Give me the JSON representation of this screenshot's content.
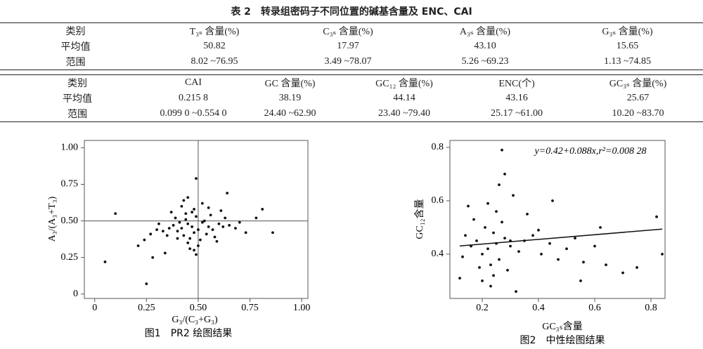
{
  "table": {
    "title": "表 2　转录组密码子不同位置的碱基含量及 ENC、CAI",
    "header1": [
      "类别",
      "T₃ₛ 含量(%)",
      "C₃ₛ 含量(%)",
      "A₃ₛ 含量(%)",
      "G₃ₛ 含量(%)"
    ],
    "rows1": [
      [
        "平均值",
        "50.82",
        "17.97",
        "43.10",
        "15.65"
      ],
      [
        "范围",
        "8.02 ~76.95",
        "3.49 ~78.07",
        "5.26 ~69.23",
        "1.13 ~74.85"
      ]
    ],
    "header2": [
      "类别",
      "CAI",
      "GC 含量(%)",
      "GC₁₂ 含量(%)",
      "ENC(个)",
      "GC₃ₛ 含量(%)"
    ],
    "rows2": [
      [
        "平均值",
        "0.215 8",
        "38.19",
        "44.14",
        "43.16",
        "25.67"
      ],
      [
        "范围",
        "0.099 0 ~0.554 0",
        "24.40 ~62.90",
        "23.40 ~79.40",
        "25.17 ~61.00",
        "10.20 ~83.70"
      ]
    ]
  },
  "chart_data": [
    {
      "type": "scatter",
      "caption": "图1　PR2 绘图结果",
      "xlabel": "G₃/(C₃+G₃)",
      "ylabel": "A₃/(A₃+T₃)",
      "xlim": [
        -0.05,
        1.03
      ],
      "ylim": [
        -0.03,
        1.05
      ],
      "xticks": [
        0,
        0.25,
        {
          "value": 0.5,
          "label": "0.50"
        },
        0.75,
        {
          "value": 1,
          "label": "1.00"
        }
      ],
      "yticks": [
        0,
        0.25,
        {
          "value": 0.5,
          "label": "0.50"
        },
        0.75,
        {
          "value": 1,
          "label": "1.00"
        }
      ],
      "vline": 0.5,
      "hline": 0.5,
      "color": "#111111",
      "x": [
        0.47,
        0.45,
        0.5,
        0.42,
        0.52,
        0.48,
        0.44,
        0.55,
        0.4,
        0.46,
        0.53,
        0.38,
        0.57,
        0.49,
        0.43,
        0.51,
        0.36,
        0.6,
        0.47,
        0.41,
        0.54,
        0.45,
        0.33,
        0.62,
        0.48,
        0.39,
        0.58,
        0.44,
        0.3,
        0.65,
        0.5,
        0.35,
        0.56,
        0.42,
        0.27,
        0.68,
        0.46,
        0.31,
        0.61,
        0.52,
        0.24,
        0.7,
        0.48,
        0.37,
        0.59,
        0.43,
        0.21,
        0.73,
        0.55,
        0.34,
        0.63,
        0.45,
        0.49,
        0.4,
        0.28,
        0.78,
        0.1,
        0.86,
        0.05,
        0.81,
        0.25,
        0.49,
        0.64
      ],
      "values": [
        0.46,
        0.48,
        0.44,
        0.45,
        0.49,
        0.42,
        0.51,
        0.46,
        0.43,
        0.38,
        0.5,
        0.47,
        0.44,
        0.53,
        0.4,
        0.37,
        0.45,
        0.48,
        0.56,
        0.49,
        0.41,
        0.35,
        0.43,
        0.46,
        0.58,
        0.52,
        0.39,
        0.55,
        0.44,
        0.47,
        0.33,
        0.4,
        0.54,
        0.6,
        0.41,
        0.45,
        0.31,
        0.48,
        0.57,
        0.62,
        0.37,
        0.49,
        0.3,
        0.56,
        0.36,
        0.64,
        0.33,
        0.42,
        0.59,
        0.28,
        0.52,
        0.66,
        0.27,
        0.38,
        0.25,
        0.52,
        0.55,
        0.42,
        0.22,
        0.58,
        0.07,
        0.79,
        0.69
      ]
    },
    {
      "type": "scatter",
      "caption": "图2　中性绘图结果",
      "xlabel": "GC₃ₛ含量",
      "ylabel": "GC₁₂含量",
      "annotation": "y=0.42+0.088x,r²=0.008 28",
      "xlim": [
        0.085,
        0.85
      ],
      "ylim": [
        0.234,
        0.826
      ],
      "xticks": [
        0.2,
        0.4,
        0.6,
        0.8
      ],
      "yticks": [
        0.4,
        0.6,
        0.8
      ],
      "trendline": {
        "intercept": 0.42,
        "slope": 0.088
      },
      "color": "#111111",
      "x": [
        0.25,
        0.22,
        0.28,
        0.2,
        0.3,
        0.24,
        0.18,
        0.33,
        0.26,
        0.21,
        0.35,
        0.23,
        0.16,
        0.38,
        0.27,
        0.19,
        0.41,
        0.25,
        0.14,
        0.44,
        0.29,
        0.22,
        0.47,
        0.17,
        0.31,
        0.5,
        0.24,
        0.13,
        0.53,
        0.26,
        0.36,
        0.2,
        0.56,
        0.28,
        0.15,
        0.6,
        0.23,
        0.4,
        0.27,
        0.64,
        0.7,
        0.75,
        0.84,
        0.82,
        0.62,
        0.55,
        0.32,
        0.12,
        0.45,
        0.3
      ],
      "values": [
        0.44,
        0.42,
        0.46,
        0.4,
        0.43,
        0.48,
        0.45,
        0.41,
        0.38,
        0.5,
        0.45,
        0.36,
        0.43,
        0.47,
        0.52,
        0.35,
        0.4,
        0.56,
        0.47,
        0.44,
        0.34,
        0.59,
        0.38,
        0.53,
        0.62,
        0.42,
        0.32,
        0.39,
        0.46,
        0.66,
        0.55,
        0.3,
        0.37,
        0.7,
        0.58,
        0.43,
        0.28,
        0.49,
        0.79,
        0.36,
        0.33,
        0.35,
        0.4,
        0.54,
        0.5,
        0.3,
        0.26,
        0.31,
        0.6,
        0.45
      ]
    }
  ]
}
